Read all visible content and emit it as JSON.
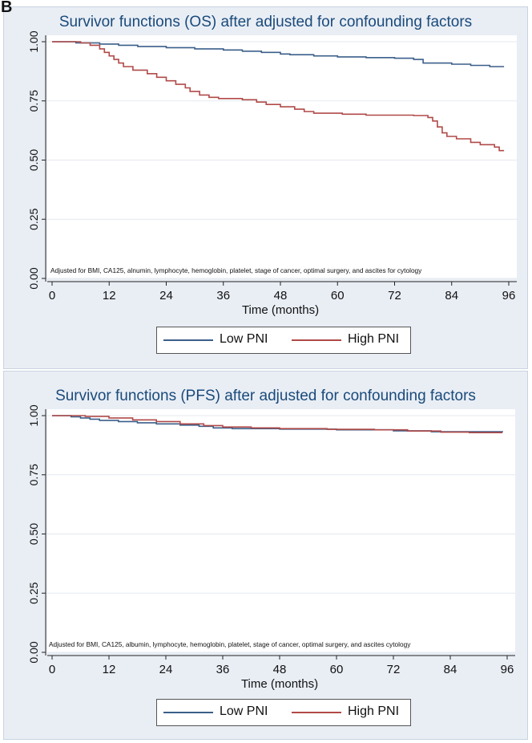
{
  "figure_label": "B",
  "colors": {
    "low": "#3b5f8a",
    "high": "#b04a48",
    "grid": "#e4e9f0",
    "axis": "#222222"
  },
  "chart_data": [
    {
      "type": "line",
      "title": "Survivor functions (OS) after adjusted for confounding factors",
      "xlabel": "Time (months)",
      "ylabel": "",
      "xlim": [
        0,
        96
      ],
      "ylim": [
        0,
        1
      ],
      "xticks": [
        0,
        12,
        24,
        36,
        48,
        60,
        72,
        84,
        96
      ],
      "yticks": [
        "0.00",
        "0.25",
        "0.50",
        "0.75",
        "1.00"
      ],
      "annotation": "Adjusted for BMI, CA125, alnumin, lymphocyte, hemoglobin, platelet, stage of cancer, optimal surgery, and ascites for cytology",
      "legend": [
        "Low PNI",
        "High PNI"
      ],
      "series": [
        {
          "name": "Low PNI",
          "step": [
            [
              0,
              1.0
            ],
            [
              5,
              0.995
            ],
            [
              10,
              0.99
            ],
            [
              14,
              0.985
            ],
            [
              18,
              0.98
            ],
            [
              24,
              0.975
            ],
            [
              30,
              0.97
            ],
            [
              36,
              0.965
            ],
            [
              40,
              0.96
            ],
            [
              44,
              0.955
            ],
            [
              48,
              0.948
            ],
            [
              50,
              0.945
            ],
            [
              55,
              0.94
            ],
            [
              60,
              0.936
            ],
            [
              66,
              0.933
            ],
            [
              72,
              0.93
            ],
            [
              76,
              0.925
            ],
            [
              78,
              0.91
            ],
            [
              84,
              0.905
            ],
            [
              88,
              0.9
            ],
            [
              92,
              0.895
            ],
            [
              95,
              0.895
            ]
          ]
        },
        {
          "name": "High PNI",
          "step": [
            [
              0,
              1.0
            ],
            [
              6,
              0.995
            ],
            [
              8,
              0.985
            ],
            [
              10,
              0.97
            ],
            [
              11,
              0.955
            ],
            [
              12,
              0.94
            ],
            [
              13,
              0.925
            ],
            [
              14,
              0.91
            ],
            [
              15,
              0.895
            ],
            [
              17,
              0.88
            ],
            [
              20,
              0.865
            ],
            [
              22,
              0.85
            ],
            [
              24,
              0.835
            ],
            [
              26,
              0.82
            ],
            [
              28,
              0.805
            ],
            [
              29,
              0.79
            ],
            [
              31,
              0.775
            ],
            [
              33,
              0.765
            ],
            [
              35,
              0.76
            ],
            [
              40,
              0.755
            ],
            [
              43,
              0.745
            ],
            [
              45,
              0.735
            ],
            [
              48,
              0.725
            ],
            [
              51,
              0.715
            ],
            [
              53,
              0.705
            ],
            [
              55,
              0.698
            ],
            [
              61,
              0.694
            ],
            [
              66,
              0.69
            ],
            [
              76,
              0.688
            ],
            [
              79,
              0.68
            ],
            [
              80,
              0.665
            ],
            [
              81,
              0.64
            ],
            [
              82,
              0.615
            ],
            [
              83,
              0.6
            ],
            [
              85,
              0.59
            ],
            [
              88,
              0.575
            ],
            [
              90,
              0.565
            ],
            [
              93,
              0.555
            ],
            [
              94,
              0.54
            ],
            [
              95,
              0.54
            ]
          ]
        }
      ]
    },
    {
      "type": "line",
      "title": "Survivor functions (PFS) after adjusted for confounding factors",
      "xlabel": "Time (months)",
      "ylabel": "",
      "xlim": [
        0,
        96
      ],
      "ylim": [
        0,
        1
      ],
      "xticks": [
        0,
        12,
        24,
        36,
        48,
        60,
        72,
        84,
        96
      ],
      "yticks": [
        "0.00",
        "0.25",
        "0.50",
        "0.75",
        "1.00"
      ],
      "annotation": "Adjusted for BMI, CA125, albumin, lymphocyte, hemoglobin, platelet, stage of cancer, optimal surgery, and ascites cytology",
      "legend": [
        "Low PNI",
        "High PNI"
      ],
      "series": [
        {
          "name": "Low PNI",
          "step": [
            [
              0,
              1.0
            ],
            [
              4,
              0.995
            ],
            [
              6,
              0.99
            ],
            [
              8,
              0.985
            ],
            [
              10,
              0.98
            ],
            [
              14,
              0.975
            ],
            [
              18,
              0.97
            ],
            [
              22,
              0.965
            ],
            [
              27,
              0.96
            ],
            [
              31,
              0.955
            ],
            [
              34,
              0.948
            ],
            [
              38,
              0.945
            ],
            [
              48,
              0.943
            ],
            [
              60,
              0.94
            ],
            [
              72,
              0.936
            ],
            [
              80,
              0.932
            ],
            [
              95,
              0.93
            ]
          ]
        },
        {
          "name": "High PNI",
          "step": [
            [
              0,
              1.0
            ],
            [
              7,
              0.997
            ],
            [
              12,
              0.99
            ],
            [
              17,
              0.982
            ],
            [
              22,
              0.975
            ],
            [
              27,
              0.965
            ],
            [
              32,
              0.958
            ],
            [
              36,
              0.952
            ],
            [
              42,
              0.948
            ],
            [
              48,
              0.945
            ],
            [
              58,
              0.942
            ],
            [
              68,
              0.94
            ],
            [
              75,
              0.935
            ],
            [
              82,
              0.93
            ],
            [
              88,
              0.928
            ],
            [
              95,
              0.928
            ]
          ]
        }
      ]
    }
  ]
}
